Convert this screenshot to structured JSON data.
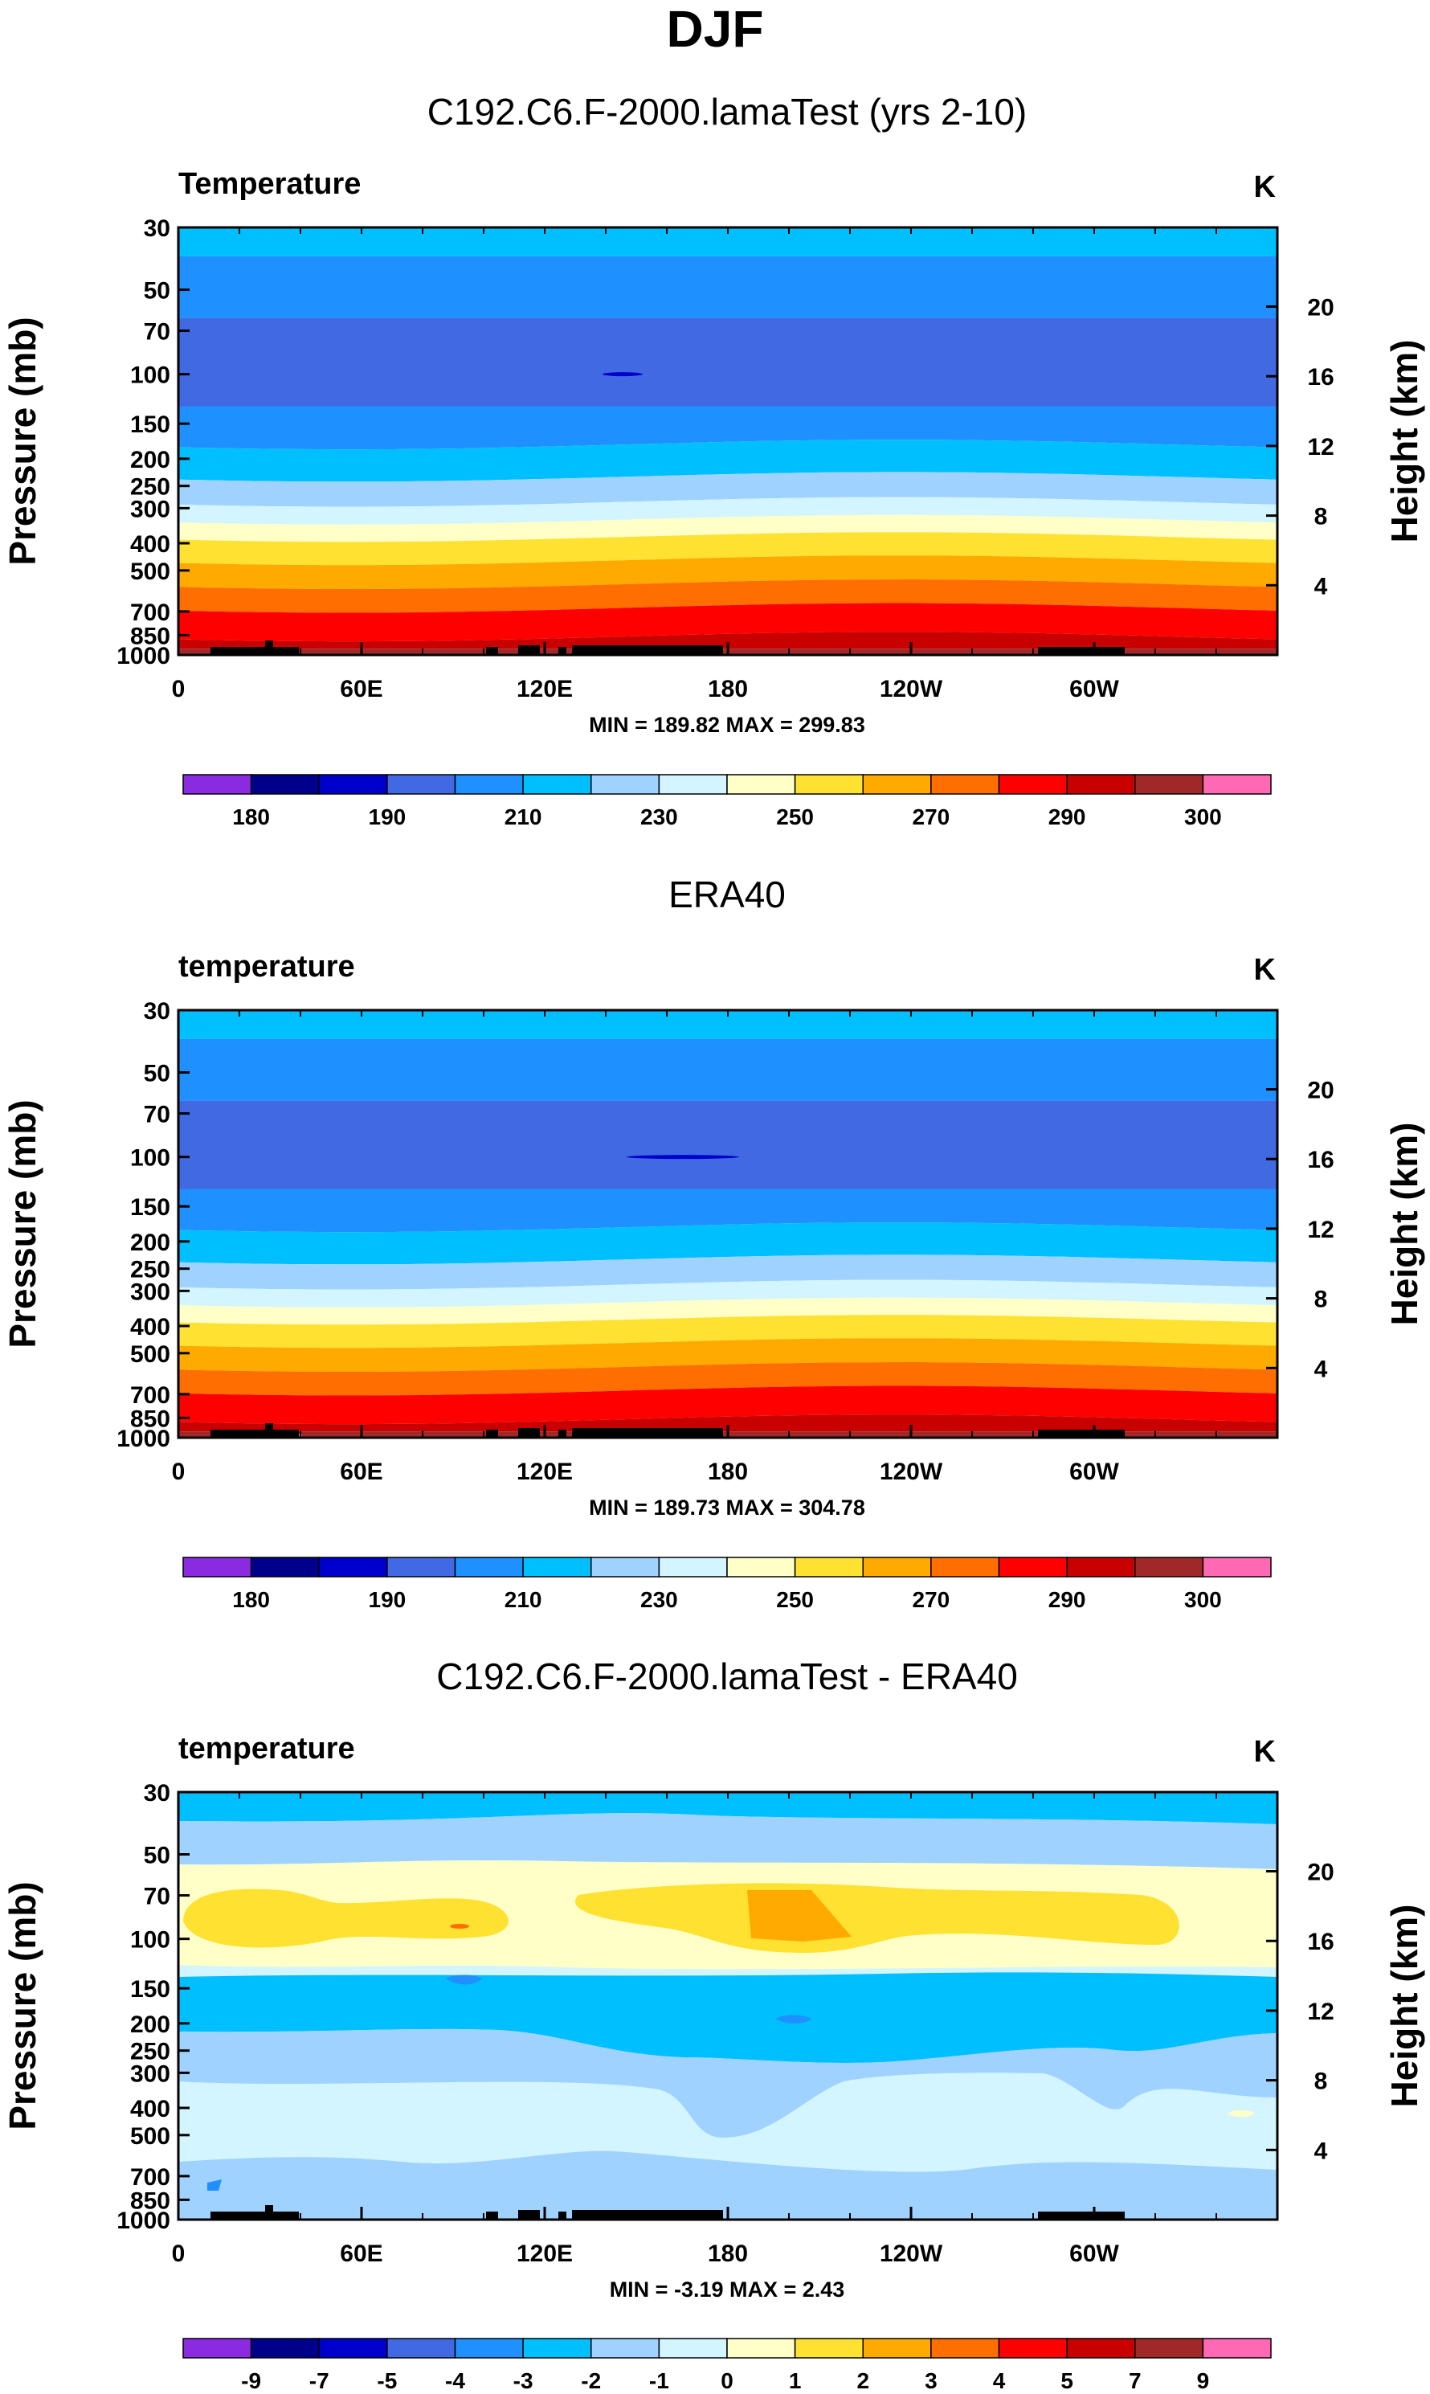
{
  "page_title": "DJF",
  "chart_data": [
    {
      "type": "heatmap",
      "panel_title": "C192.C6.F-2000.lamaTest (yrs 2-10)",
      "variable_label": "Temperature",
      "units_label": "K",
      "ylabel": "Pressure (mb)",
      "ylabel_right": "Height (km)",
      "pressure_ticks": [
        "30",
        "50",
        "70",
        "100",
        "150",
        "200",
        "250",
        "300",
        "400",
        "500",
        "700",
        "850",
        "1000"
      ],
      "height_ticks": [
        "20",
        "16",
        "12",
        "8",
        "4"
      ],
      "x_ticks": [
        "0",
        "60E",
        "120E",
        "180",
        "120W",
        "60W"
      ],
      "stats": "MIN = 189.82  MAX = 299.83",
      "colorbar_labels": [
        "180",
        "190",
        "210",
        "230",
        "250",
        "270",
        "290",
        "300"
      ],
      "colorbar_colors": [
        "#8a2be2",
        "#00008b",
        "#0000cd",
        "#4169e1",
        "#1e90ff",
        "#00bfff",
        "#a0d2ff",
        "#d2f5ff",
        "#ffffc8",
        "#ffe132",
        "#ffaa00",
        "#ff6e00",
        "#ff0000",
        "#c80000",
        "#a02828",
        "#ff69b4"
      ]
    },
    {
      "type": "heatmap",
      "panel_title": "ERA40",
      "variable_label": "temperature",
      "units_label": "K",
      "ylabel": "Pressure (mb)",
      "ylabel_right": "Height (km)",
      "pressure_ticks": [
        "30",
        "50",
        "70",
        "100",
        "150",
        "200",
        "250",
        "300",
        "400",
        "500",
        "700",
        "850",
        "1000"
      ],
      "height_ticks": [
        "20",
        "16",
        "12",
        "8",
        "4"
      ],
      "x_ticks": [
        "0",
        "60E",
        "120E",
        "180",
        "120W",
        "60W"
      ],
      "stats": "MIN = 189.73  MAX = 304.78",
      "colorbar_labels": [
        "180",
        "190",
        "210",
        "230",
        "250",
        "270",
        "290",
        "300"
      ],
      "colorbar_colors": [
        "#8a2be2",
        "#00008b",
        "#0000cd",
        "#4169e1",
        "#1e90ff",
        "#00bfff",
        "#a0d2ff",
        "#d2f5ff",
        "#ffffc8",
        "#ffe132",
        "#ffaa00",
        "#ff6e00",
        "#ff0000",
        "#c80000",
        "#a02828",
        "#ff69b4"
      ]
    },
    {
      "type": "heatmap",
      "panel_title": "C192.C6.F-2000.lamaTest - ERA40",
      "variable_label": "temperature",
      "units_label": "K",
      "ylabel": "Pressure (mb)",
      "ylabel_right": "Height (km)",
      "pressure_ticks": [
        "30",
        "50",
        "70",
        "100",
        "150",
        "200",
        "250",
        "300",
        "400",
        "500",
        "700",
        "850",
        "1000"
      ],
      "height_ticks": [
        "20",
        "16",
        "12",
        "8",
        "4"
      ],
      "x_ticks": [
        "0",
        "60E",
        "120E",
        "180",
        "120W",
        "60W"
      ],
      "stats": "MIN = -3.19  MAX = 2.43",
      "colorbar_labels": [
        "-9",
        "-7",
        "-5",
        "-4",
        "-3",
        "-2",
        "-1",
        "0",
        "1",
        "2",
        "3",
        "4",
        "5",
        "7",
        "9"
      ],
      "colorbar_colors": [
        "#8a2be2",
        "#00008b",
        "#0000cd",
        "#4169e1",
        "#1e90ff",
        "#00bfff",
        "#a0d2ff",
        "#d2f5ff",
        "#ffffc8",
        "#ffe132",
        "#ffaa00",
        "#ff6e00",
        "#ff0000",
        "#c80000",
        "#a02828",
        "#ff69b4"
      ]
    }
  ]
}
